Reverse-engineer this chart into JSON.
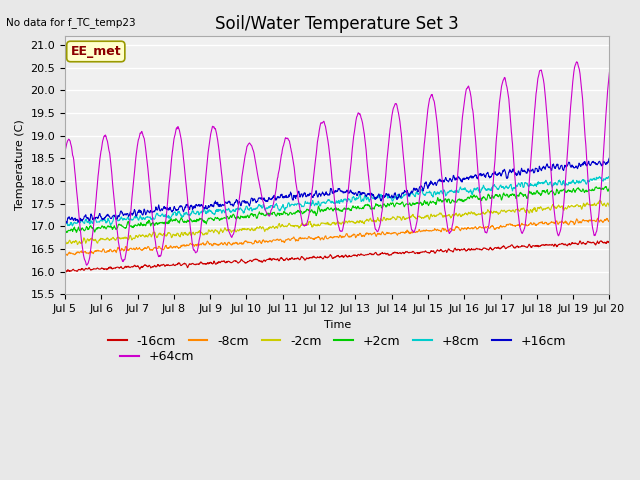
{
  "title": "Soil/Water Temperature Set 3",
  "xlabel": "Time",
  "ylabel": "Temperature (C)",
  "ylim": [
    15.5,
    21.2
  ],
  "xlim": [
    0,
    15
  ],
  "no_data_text": "No data for f_TC_temp23",
  "legend_text": "EE_met",
  "xtick_labels": [
    "Jul 5",
    "Jul 6",
    "Jul 7",
    "Jul 8",
    "Jul 9",
    "Jul 10",
    "Jul 11",
    "Jul 12",
    "Jul 13",
    "Jul 14",
    "Jul 15",
    "Jul 16",
    "Jul 17",
    "Jul 18",
    "Jul 19",
    "Jul 20"
  ],
  "series": {
    "-16cm": {
      "color": "#cc0000"
    },
    "-8cm": {
      "color": "#ff8800"
    },
    "-2cm": {
      "color": "#cccc00"
    },
    "+2cm": {
      "color": "#00cc00"
    },
    "+8cm": {
      "color": "#00cccc"
    },
    "+16cm": {
      "color": "#0000cc"
    },
    "+64cm": {
      "color": "#cc00cc"
    }
  },
  "bg_color": "#e8e8e8",
  "plot_bg_color": "#f0f0f0",
  "grid_color": "#ffffff",
  "title_fontsize": 12,
  "axis_fontsize": 8,
  "tick_fontsize": 8,
  "legend_fontsize": 9,
  "yticks": [
    15.5,
    16.0,
    16.5,
    17.0,
    17.5,
    18.0,
    18.5,
    19.0,
    19.5,
    20.0,
    20.5,
    21.0
  ]
}
